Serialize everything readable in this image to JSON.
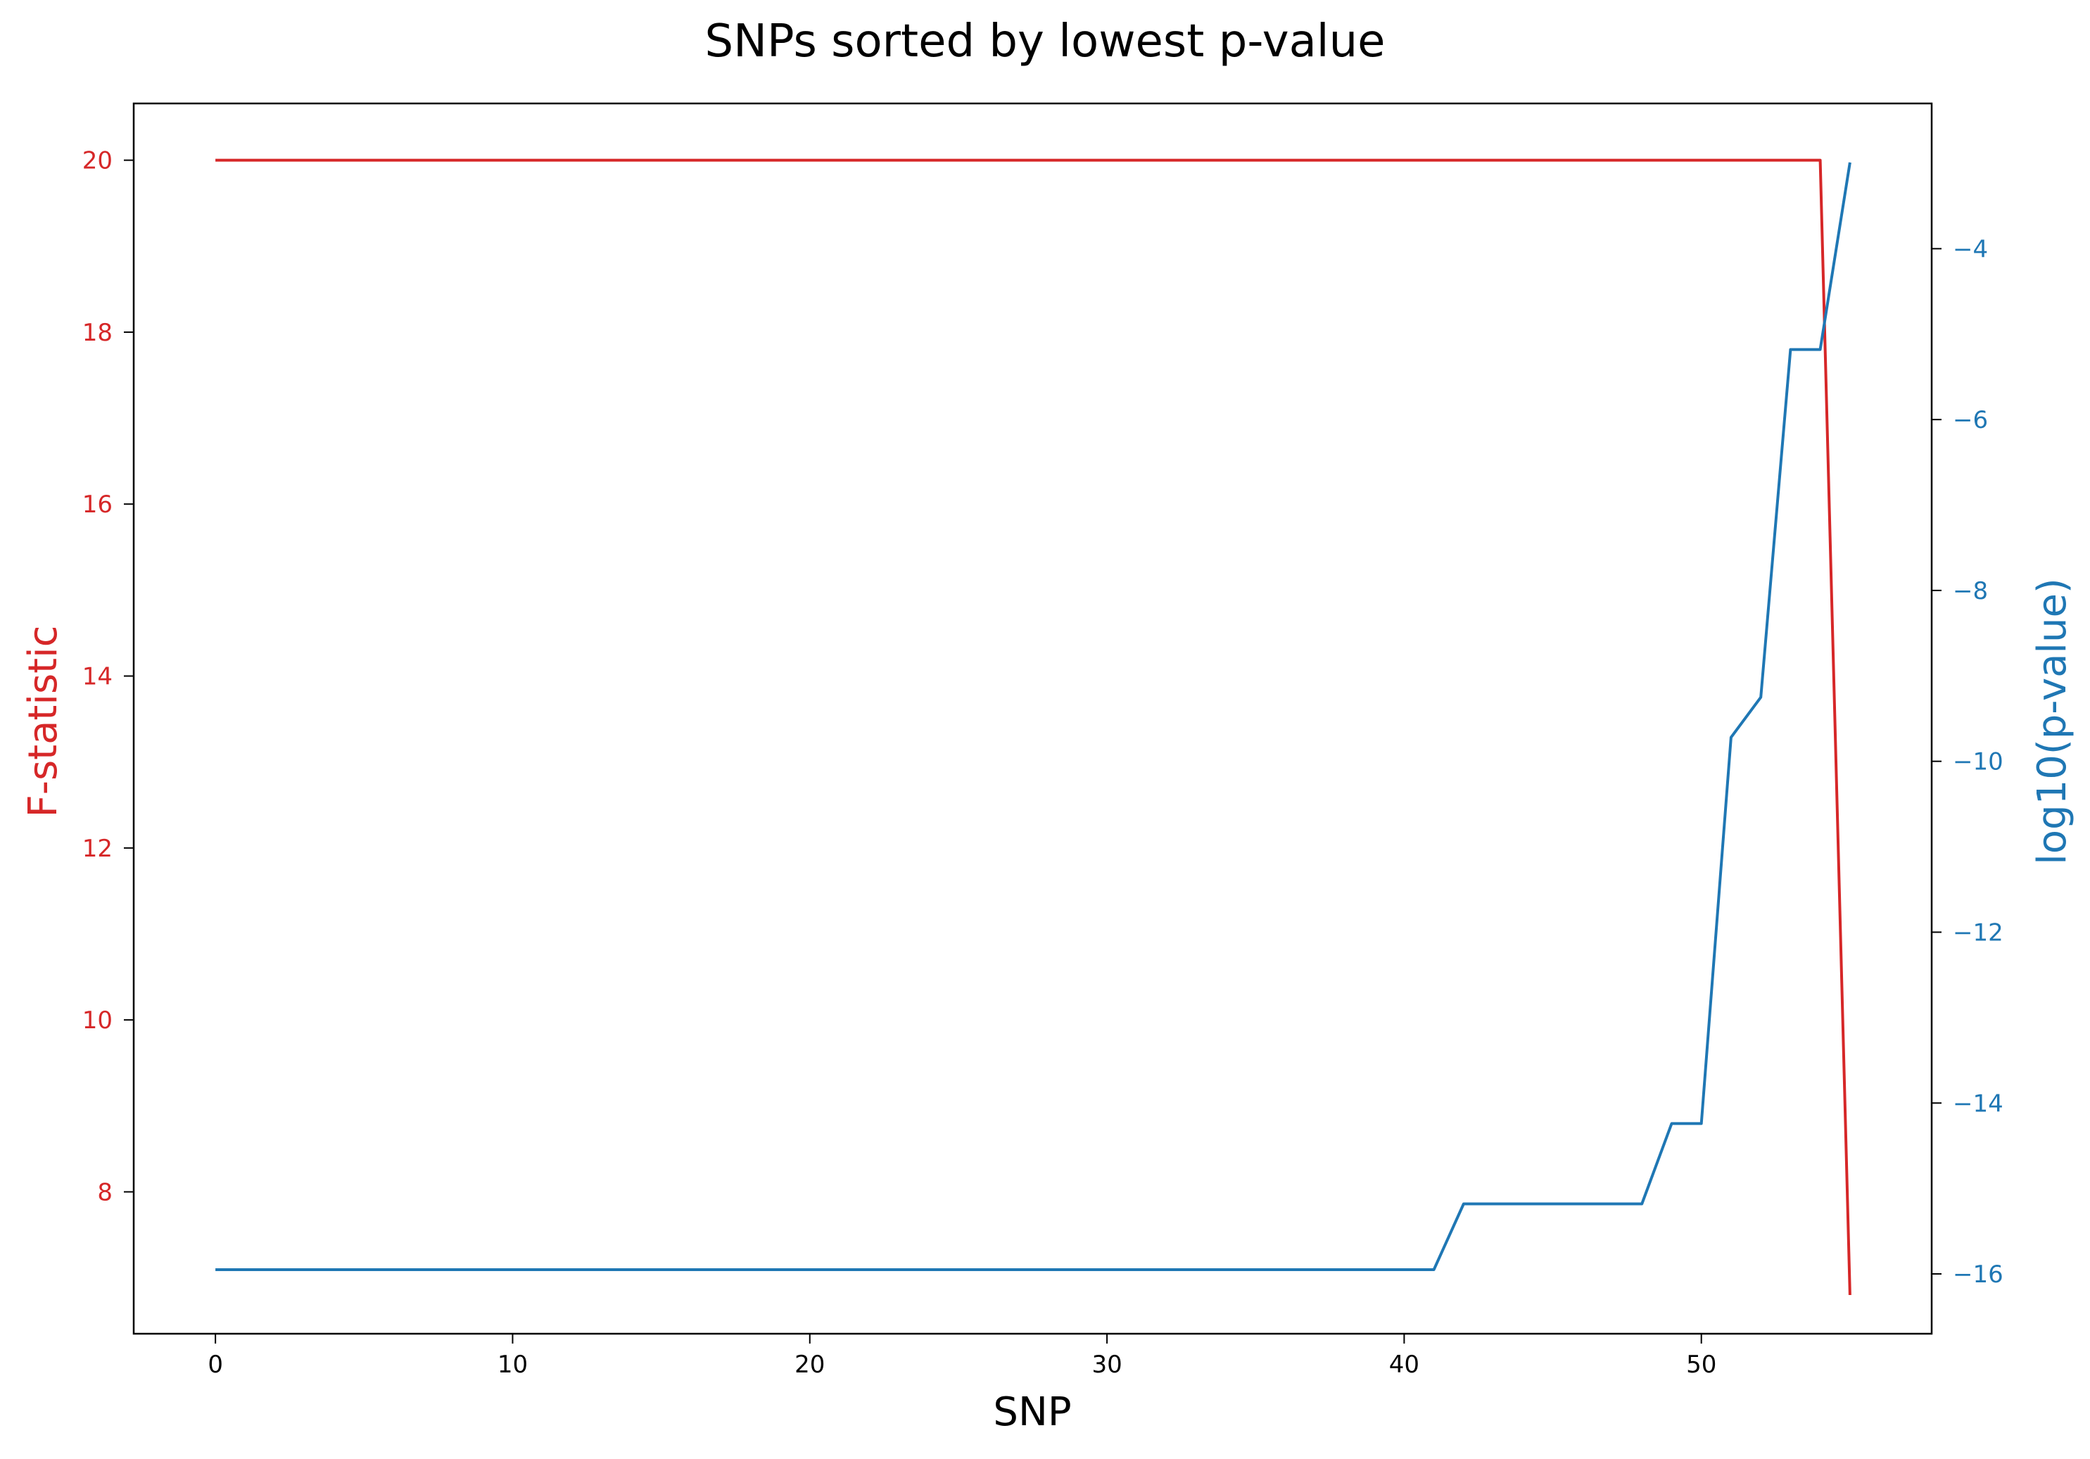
{
  "chart_data": {
    "type": "line",
    "title": "SNPs sorted by lowest p-value",
    "xlabel": "SNP",
    "xlim": [
      -2.75,
      57.75
    ],
    "xticks": [
      0,
      10,
      20,
      30,
      40,
      50
    ],
    "grid": false,
    "axes": {
      "left": {
        "label": "F-statistic",
        "color": "#d62728",
        "ylim": [
          6.35,
          20.66
        ],
        "ticks": [
          8,
          10,
          12,
          14,
          16,
          18,
          20
        ]
      },
      "right": {
        "label": "log10(p-value)",
        "color": "#1f77b4",
        "ylim": [
          -16.7,
          -2.3
        ],
        "ticks": [
          -16,
          -14,
          -12,
          -10,
          -8,
          -6,
          -4
        ],
        "tick_labels": [
          "−16",
          "−14",
          "−12",
          "−10",
          "−8",
          "−6",
          "−4"
        ]
      }
    },
    "series": [
      {
        "axis": "left",
        "color": "#d62728",
        "x": [
          0,
          54,
          55
        ],
        "values": [
          20.0,
          20.0,
          6.8
        ]
      },
      {
        "axis": "right",
        "color": "#1f77b4",
        "x": [
          0,
          41,
          42,
          48,
          49,
          50,
          51,
          52,
          53,
          54,
          55
        ],
        "values": [
          -15.95,
          -15.95,
          -15.18,
          -15.18,
          -14.24,
          -14.24,
          -9.72,
          -9.25,
          -5.18,
          -5.18,
          -2.99
        ]
      }
    ]
  }
}
